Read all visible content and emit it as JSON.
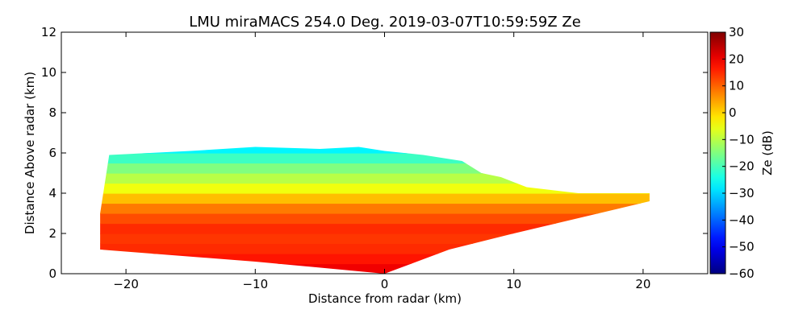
{
  "chart_data": {
    "type": "heatmap",
    "title": "LMU miraMACS 254.0 Deg. 2019-03-07T10:59:59Z  Ze",
    "xlabel": "Distance from radar (km)",
    "ylabel": "Distance Above radar  (km)",
    "xlim": [
      -25,
      25
    ],
    "ylim": [
      0,
      12
    ],
    "x_ticks": [
      -20,
      -10,
      0,
      10,
      20
    ],
    "x_tick_labels": [
      "−20",
      "−10",
      "0",
      "10",
      "20"
    ],
    "y_ticks": [
      0,
      2,
      4,
      6,
      8,
      10,
      12
    ],
    "y_tick_labels": [
      "0",
      "2",
      "4",
      "6",
      "8",
      "10",
      "12"
    ],
    "colorbar": {
      "label": "Ze (dB)",
      "range": [
        -60,
        30
      ],
      "ticks": [
        -60,
        -50,
        -40,
        -30,
        -20,
        -10,
        0,
        10,
        20,
        30
      ],
      "tick_labels": [
        "−60",
        "−50",
        "−40",
        "−30",
        "−20",
        "−10",
        "0",
        "10",
        "20",
        "30"
      ],
      "colormap": "jet"
    },
    "echo_region": {
      "left_edge": [
        [
          -22,
          1.2
        ],
        [
          -22,
          3.0
        ],
        [
          -21.3,
          5.9
        ]
      ],
      "top_edge": [
        [
          -21.3,
          5.9
        ],
        [
          -15,
          6.1
        ],
        [
          -10,
          6.3
        ],
        [
          -5,
          6.2
        ],
        [
          -2,
          6.3
        ],
        [
          0,
          6.1
        ],
        [
          3,
          5.9
        ],
        [
          6,
          5.6
        ],
        [
          7.5,
          5.0
        ],
        [
          9,
          4.8
        ],
        [
          11,
          4.3
        ],
        [
          15,
          4.0
        ],
        [
          20.5,
          4.0
        ]
      ],
      "bottom_edge": [
        [
          20.5,
          3.6
        ],
        [
          10,
          2.0
        ],
        [
          5,
          1.2
        ],
        [
          0,
          0
        ],
        [
          -10,
          0.6
        ],
        [
          -22,
          1.2
        ]
      ]
    },
    "reflectivity_profile": {
      "height_km": [
        0.0,
        0.5,
        1.0,
        1.5,
        2.0,
        2.5,
        3.0,
        3.5,
        4.0,
        4.5,
        5.0,
        5.5,
        6.0
      ],
      "ze_db": [
        20,
        17,
        15,
        14,
        15,
        12,
        8,
        2,
        -5,
        -10,
        -15,
        -21,
        -27
      ]
    }
  }
}
